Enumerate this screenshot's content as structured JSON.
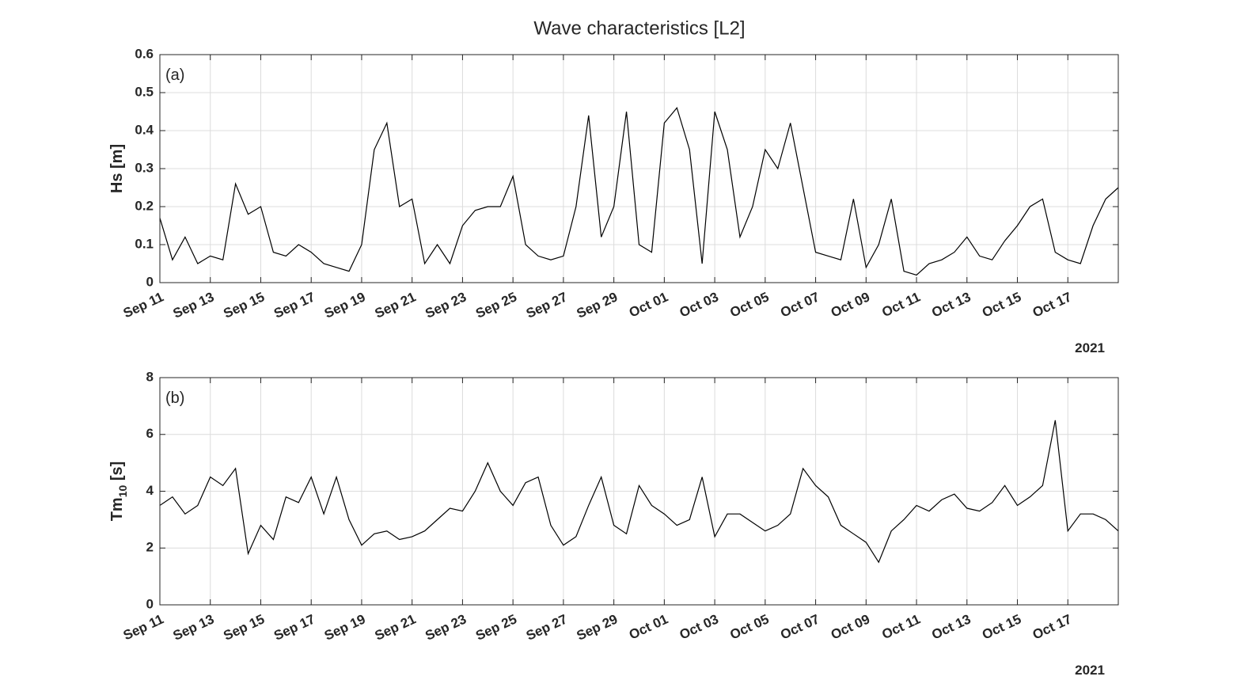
{
  "chart_data": [
    {
      "type": "line",
      "title": "Wave characteristics [L2]",
      "annotation": "(a)",
      "ylabel": "Hs [m]",
      "year_label": "2021",
      "color": "#000000",
      "grid": true,
      "xlim": [
        "2021-09-11T00:00",
        "2021-10-19T00:00"
      ],
      "xticks": [
        {
          "value": "2021-09-11",
          "label": "Sep 11"
        },
        {
          "value": "2021-09-13",
          "label": "Sep 13"
        },
        {
          "value": "2021-09-15",
          "label": "Sep 15"
        },
        {
          "value": "2021-09-17",
          "label": "Sep 17"
        },
        {
          "value": "2021-09-19",
          "label": "Sep 19"
        },
        {
          "value": "2021-09-21",
          "label": "Sep 21"
        },
        {
          "value": "2021-09-23",
          "label": "Sep 23"
        },
        {
          "value": "2021-09-25",
          "label": "Sep 25"
        },
        {
          "value": "2021-09-27",
          "label": "Sep 27"
        },
        {
          "value": "2021-09-29",
          "label": "Sep 29"
        },
        {
          "value": "2021-10-01",
          "label": "Oct 01"
        },
        {
          "value": "2021-10-03",
          "label": "Oct 03"
        },
        {
          "value": "2021-10-05",
          "label": "Oct 05"
        },
        {
          "value": "2021-10-07",
          "label": "Oct 07"
        },
        {
          "value": "2021-10-09",
          "label": "Oct 09"
        },
        {
          "value": "2021-10-11",
          "label": "Oct 11"
        },
        {
          "value": "2021-10-13",
          "label": "Oct 13"
        },
        {
          "value": "2021-10-15",
          "label": "Oct 15"
        },
        {
          "value": "2021-10-17",
          "label": "Oct 17"
        }
      ],
      "ylim": [
        0,
        0.6
      ],
      "yticks": [
        0,
        0.1,
        0.2,
        0.3,
        0.4,
        0.5,
        0.6
      ],
      "x": [
        "2021-09-11T00:00",
        "2021-09-11T12:00",
        "2021-09-12T00:00",
        "2021-09-12T12:00",
        "2021-09-13T00:00",
        "2021-09-13T12:00",
        "2021-09-14T00:00",
        "2021-09-14T12:00",
        "2021-09-15T00:00",
        "2021-09-15T12:00",
        "2021-09-16T00:00",
        "2021-09-16T12:00",
        "2021-09-17T00:00",
        "2021-09-17T12:00",
        "2021-09-18T00:00",
        "2021-09-18T12:00",
        "2021-09-19T00:00",
        "2021-09-19T12:00",
        "2021-09-20T00:00",
        "2021-09-20T12:00",
        "2021-09-21T00:00",
        "2021-09-21T12:00",
        "2021-09-22T00:00",
        "2021-09-22T12:00",
        "2021-09-23T00:00",
        "2021-09-23T12:00",
        "2021-09-24T00:00",
        "2021-09-24T12:00",
        "2021-09-25T00:00",
        "2021-09-25T12:00",
        "2021-09-26T00:00",
        "2021-09-26T12:00",
        "2021-09-27T00:00",
        "2021-09-27T12:00",
        "2021-09-28T00:00",
        "2021-09-28T12:00",
        "2021-09-29T00:00",
        "2021-09-29T12:00",
        "2021-09-30T00:00",
        "2021-09-30T12:00",
        "2021-10-01T00:00",
        "2021-10-01T12:00",
        "2021-10-02T00:00",
        "2021-10-02T12:00",
        "2021-10-03T00:00",
        "2021-10-03T12:00",
        "2021-10-04T00:00",
        "2021-10-04T12:00",
        "2021-10-05T00:00",
        "2021-10-05T12:00",
        "2021-10-06T00:00",
        "2021-10-06T12:00",
        "2021-10-07T00:00",
        "2021-10-07T12:00",
        "2021-10-08T00:00",
        "2021-10-08T12:00",
        "2021-10-09T00:00",
        "2021-10-09T12:00",
        "2021-10-10T00:00",
        "2021-10-10T12:00",
        "2021-10-11T00:00",
        "2021-10-11T12:00",
        "2021-10-12T00:00",
        "2021-10-12T12:00",
        "2021-10-13T00:00",
        "2021-10-13T12:00",
        "2021-10-14T00:00",
        "2021-10-14T12:00",
        "2021-10-15T00:00",
        "2021-10-15T12:00",
        "2021-10-16T00:00",
        "2021-10-16T12:00",
        "2021-10-17T00:00",
        "2021-10-17T12:00",
        "2021-10-18T00:00",
        "2021-10-18T12:00",
        "2021-10-19T00:00"
      ],
      "values": [
        0.17,
        0.06,
        0.12,
        0.05,
        0.07,
        0.06,
        0.26,
        0.18,
        0.2,
        0.08,
        0.07,
        0.1,
        0.08,
        0.05,
        0.04,
        0.03,
        0.1,
        0.35,
        0.42,
        0.2,
        0.22,
        0.05,
        0.1,
        0.05,
        0.15,
        0.19,
        0.2,
        0.2,
        0.28,
        0.1,
        0.07,
        0.06,
        0.07,
        0.2,
        0.44,
        0.12,
        0.2,
        0.45,
        0.1,
        0.08,
        0.42,
        0.46,
        0.35,
        0.05,
        0.45,
        0.35,
        0.12,
        0.2,
        0.35,
        0.3,
        0.42,
        0.25,
        0.08,
        0.07,
        0.06,
        0.22,
        0.04,
        0.1,
        0.22,
        0.03,
        0.02,
        0.05,
        0.06,
        0.08,
        0.12,
        0.07,
        0.06,
        0.11,
        0.15,
        0.2,
        0.22,
        0.08,
        0.06,
        0.05,
        0.15,
        0.22,
        0.25
      ]
    },
    {
      "type": "line",
      "annotation": "(b)",
      "ylabel": [
        "Tm",
        "10",
        " [s]"
      ],
      "year_label": "2021",
      "color": "#000000",
      "grid": true,
      "xlim": [
        "2021-09-11T00:00",
        "2021-10-19T00:00"
      ],
      "xticks": [
        {
          "value": "2021-09-11",
          "label": "Sep 11"
        },
        {
          "value": "2021-09-13",
          "label": "Sep 13"
        },
        {
          "value": "2021-09-15",
          "label": "Sep 15"
        },
        {
          "value": "2021-09-17",
          "label": "Sep 17"
        },
        {
          "value": "2021-09-19",
          "label": "Sep 19"
        },
        {
          "value": "2021-09-21",
          "label": "Sep 21"
        },
        {
          "value": "2021-09-23",
          "label": "Sep 23"
        },
        {
          "value": "2021-09-25",
          "label": "Sep 25"
        },
        {
          "value": "2021-09-27",
          "label": "Sep 27"
        },
        {
          "value": "2021-09-29",
          "label": "Sep 29"
        },
        {
          "value": "2021-10-01",
          "label": "Oct 01"
        },
        {
          "value": "2021-10-03",
          "label": "Oct 03"
        },
        {
          "value": "2021-10-05",
          "label": "Oct 05"
        },
        {
          "value": "2021-10-07",
          "label": "Oct 07"
        },
        {
          "value": "2021-10-09",
          "label": "Oct 09"
        },
        {
          "value": "2021-10-11",
          "label": "Oct 11"
        },
        {
          "value": "2021-10-13",
          "label": "Oct 13"
        },
        {
          "value": "2021-10-15",
          "label": "Oct 15"
        },
        {
          "value": "2021-10-17",
          "label": "Oct 17"
        }
      ],
      "ylim": [
        0,
        8
      ],
      "yticks": [
        0,
        2,
        4,
        6,
        8
      ],
      "x": [
        "2021-09-11T00:00",
        "2021-09-11T12:00",
        "2021-09-12T00:00",
        "2021-09-12T12:00",
        "2021-09-13T00:00",
        "2021-09-13T12:00",
        "2021-09-14T00:00",
        "2021-09-14T12:00",
        "2021-09-15T00:00",
        "2021-09-15T12:00",
        "2021-09-16T00:00",
        "2021-09-16T12:00",
        "2021-09-17T00:00",
        "2021-09-17T12:00",
        "2021-09-18T00:00",
        "2021-09-18T12:00",
        "2021-09-19T00:00",
        "2021-09-19T12:00",
        "2021-09-20T00:00",
        "2021-09-20T12:00",
        "2021-09-21T00:00",
        "2021-09-21T12:00",
        "2021-09-22T00:00",
        "2021-09-22T12:00",
        "2021-09-23T00:00",
        "2021-09-23T12:00",
        "2021-09-24T00:00",
        "2021-09-24T12:00",
        "2021-09-25T00:00",
        "2021-09-25T12:00",
        "2021-09-26T00:00",
        "2021-09-26T12:00",
        "2021-09-27T00:00",
        "2021-09-27T12:00",
        "2021-09-28T00:00",
        "2021-09-28T12:00",
        "2021-09-29T00:00",
        "2021-09-29T12:00",
        "2021-09-30T00:00",
        "2021-09-30T12:00",
        "2021-10-01T00:00",
        "2021-10-01T12:00",
        "2021-10-02T00:00",
        "2021-10-02T12:00",
        "2021-10-03T00:00",
        "2021-10-03T12:00",
        "2021-10-04T00:00",
        "2021-10-04T12:00",
        "2021-10-05T00:00",
        "2021-10-05T12:00",
        "2021-10-06T00:00",
        "2021-10-06T12:00",
        "2021-10-07T00:00",
        "2021-10-07T12:00",
        "2021-10-08T00:00",
        "2021-10-08T12:00",
        "2021-10-09T00:00",
        "2021-10-09T12:00",
        "2021-10-10T00:00",
        "2021-10-10T12:00",
        "2021-10-11T00:00",
        "2021-10-11T12:00",
        "2021-10-12T00:00",
        "2021-10-12T12:00",
        "2021-10-13T00:00",
        "2021-10-13T12:00",
        "2021-10-14T00:00",
        "2021-10-14T12:00",
        "2021-10-15T00:00",
        "2021-10-15T12:00",
        "2021-10-16T00:00",
        "2021-10-16T12:00",
        "2021-10-17T00:00",
        "2021-10-17T12:00",
        "2021-10-18T00:00",
        "2021-10-18T12:00",
        "2021-10-19T00:00"
      ],
      "values": [
        3.5,
        3.8,
        3.2,
        3.5,
        4.5,
        4.2,
        4.8,
        1.8,
        2.8,
        2.3,
        3.8,
        3.6,
        4.5,
        3.2,
        4.5,
        3.0,
        2.1,
        2.5,
        2.6,
        2.3,
        2.4,
        2.6,
        3.0,
        3.4,
        3.3,
        4.0,
        5.0,
        4.0,
        3.5,
        4.3,
        4.5,
        2.8,
        2.1,
        2.4,
        3.5,
        4.5,
        2.8,
        2.5,
        4.2,
        3.5,
        3.2,
        2.8,
        3.0,
        4.5,
        2.4,
        3.2,
        3.2,
        2.9,
        2.6,
        2.8,
        3.2,
        4.8,
        4.2,
        3.8,
        2.8,
        2.5,
        2.2,
        1.5,
        2.6,
        3.0,
        3.5,
        3.3,
        3.7,
        3.9,
        3.4,
        3.3,
        3.6,
        4.2,
        3.5,
        3.8,
        4.2,
        6.5,
        2.6,
        3.2,
        3.2,
        3.0,
        2.6
      ]
    }
  ]
}
